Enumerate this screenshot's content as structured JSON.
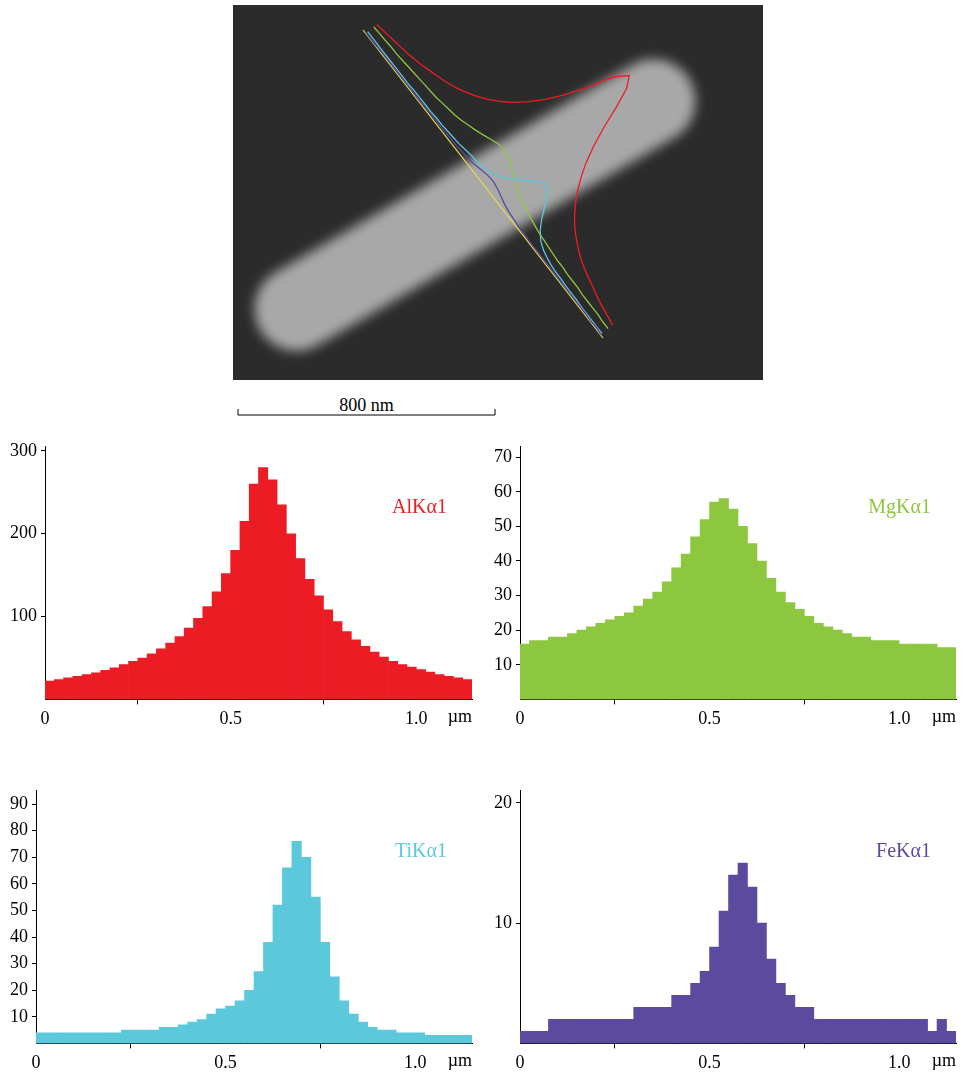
{
  "image": {
    "scale_bar": "800 nm"
  },
  "chart_data": [
    {
      "type": "bar",
      "title": "AlKα1",
      "color": "#ed1c24",
      "x_label": "µm",
      "grid": false,
      "bins": [
        0,
        0.025,
        0.05,
        0.075,
        0.1,
        0.125,
        0.15,
        0.175,
        0.2,
        0.225,
        0.25,
        0.275,
        0.3,
        0.325,
        0.35,
        0.375,
        0.4,
        0.425,
        0.45,
        0.475,
        0.5,
        0.525,
        0.55,
        0.575,
        0.6,
        0.625,
        0.65,
        0.675,
        0.7,
        0.725,
        0.75,
        0.775,
        0.8,
        0.825,
        0.85,
        0.875,
        0.9,
        0.925,
        0.95,
        0.975,
        1,
        1.025,
        1.05,
        1.075,
        1.1,
        1.125,
        1.15
      ],
      "values": [
        22,
        24,
        26,
        28,
        30,
        32,
        35,
        38,
        42,
        46,
        50,
        55,
        61,
        68,
        76,
        86,
        98,
        112,
        130,
        152,
        180,
        215,
        260,
        280,
        265,
        235,
        200,
        170,
        145,
        125,
        108,
        94,
        82,
        72,
        64,
        57,
        51,
        46,
        42,
        39,
        36,
        33,
        30,
        28,
        26,
        24
      ],
      "xlim": [
        0,
        1.15
      ],
      "xticks": [
        0,
        0.5,
        {
          "value": 1,
          "label": "1.0"
        }
      ],
      "ylim": [
        0,
        305
      ],
      "yticks": [
        100,
        200,
        300
      ]
    },
    {
      "type": "bar",
      "title": "MgKα1",
      "color": "#8dc63f",
      "x_label": "µm",
      "grid": false,
      "bins": [
        0,
        0.025,
        0.05,
        0.075,
        0.1,
        0.125,
        0.15,
        0.175,
        0.2,
        0.225,
        0.25,
        0.275,
        0.3,
        0.325,
        0.35,
        0.375,
        0.4,
        0.425,
        0.45,
        0.475,
        0.5,
        0.525,
        0.55,
        0.575,
        0.6,
        0.625,
        0.65,
        0.675,
        0.7,
        0.725,
        0.75,
        0.775,
        0.8,
        0.825,
        0.85,
        0.875,
        0.9,
        0.925,
        0.95,
        0.975,
        1,
        1.025,
        1.05,
        1.075,
        1.1,
        1.125,
        1.15
      ],
      "values": [
        16,
        17,
        17,
        18,
        18,
        19,
        20,
        21,
        22,
        23,
        24,
        25,
        27,
        29,
        31,
        34,
        38,
        42,
        47,
        52,
        57,
        58,
        55,
        50,
        45,
        40,
        35,
        31,
        28,
        26,
        24,
        22,
        21,
        20,
        19,
        18,
        18,
        17,
        17,
        17,
        16,
        16,
        16,
        16,
        15,
        15
      ],
      "xlim": [
        0,
        1.15
      ],
      "xticks": [
        0,
        0.5,
        {
          "value": 1,
          "label": "1.0"
        }
      ],
      "ylim": [
        0,
        73
      ],
      "yticks": [
        10,
        20,
        30,
        40,
        50,
        60,
        70
      ]
    },
    {
      "type": "bar",
      "title": "TiKα1",
      "color": "#5bc8dc",
      "x_label": "µm",
      "grid": false,
      "bins": [
        0,
        0.025,
        0.05,
        0.075,
        0.1,
        0.125,
        0.15,
        0.175,
        0.2,
        0.225,
        0.25,
        0.275,
        0.3,
        0.325,
        0.35,
        0.375,
        0.4,
        0.425,
        0.45,
        0.475,
        0.5,
        0.525,
        0.55,
        0.575,
        0.6,
        0.625,
        0.65,
        0.675,
        0.7,
        0.725,
        0.75,
        0.775,
        0.8,
        0.825,
        0.85,
        0.875,
        0.9,
        0.925,
        0.95,
        0.975,
        1,
        1.025,
        1.05,
        1.075,
        1.1,
        1.125,
        1.15
      ],
      "values": [
        4,
        4,
        4,
        4,
        4,
        4,
        4,
        4,
        4,
        5,
        5,
        5,
        5,
        6,
        6,
        7,
        8,
        9,
        11,
        13,
        14,
        16,
        20,
        27,
        38,
        52,
        66,
        76,
        70,
        55,
        38,
        25,
        16,
        11,
        8,
        6,
        5,
        5,
        4,
        4,
        4,
        3,
        3,
        3,
        3,
        3
      ],
      "xlim": [
        0,
        1.15
      ],
      "xticks": [
        0,
        0.5,
        {
          "value": 1,
          "label": "1.0"
        }
      ],
      "ylim": [
        0,
        95
      ],
      "yticks": [
        10,
        20,
        30,
        40,
        50,
        60,
        70,
        80,
        90
      ]
    },
    {
      "type": "bar",
      "title": "FeKα1",
      "color": "#5b4a9e",
      "x_label": "µm",
      "grid": false,
      "bins": [
        0,
        0.025,
        0.05,
        0.075,
        0.1,
        0.125,
        0.15,
        0.175,
        0.2,
        0.225,
        0.25,
        0.275,
        0.3,
        0.325,
        0.35,
        0.375,
        0.4,
        0.425,
        0.45,
        0.475,
        0.5,
        0.525,
        0.55,
        0.575,
        0.6,
        0.625,
        0.65,
        0.675,
        0.7,
        0.725,
        0.75,
        0.775,
        0.8,
        0.825,
        0.85,
        0.875,
        0.9,
        0.925,
        0.95,
        0.975,
        1,
        1.025,
        1.05,
        1.075,
        1.1,
        1.125,
        1.15
      ],
      "values": [
        1,
        1,
        1,
        2,
        2,
        2,
        2,
        2,
        2,
        2,
        2,
        2,
        3,
        3,
        3,
        3,
        4,
        4,
        5,
        6,
        8,
        11,
        14,
        15,
        13,
        10,
        7,
        5,
        4,
        3,
        3,
        2,
        2,
        2,
        2,
        2,
        2,
        2,
        2,
        2,
        2,
        2,
        2,
        1,
        2,
        1
      ],
      "xlim": [
        0,
        1.15
      ],
      "xticks": [
        0,
        0.5,
        {
          "value": 1,
          "label": "1.0"
        }
      ],
      "ylim": [
        0,
        21
      ],
      "yticks": [
        10,
        20
      ]
    }
  ]
}
